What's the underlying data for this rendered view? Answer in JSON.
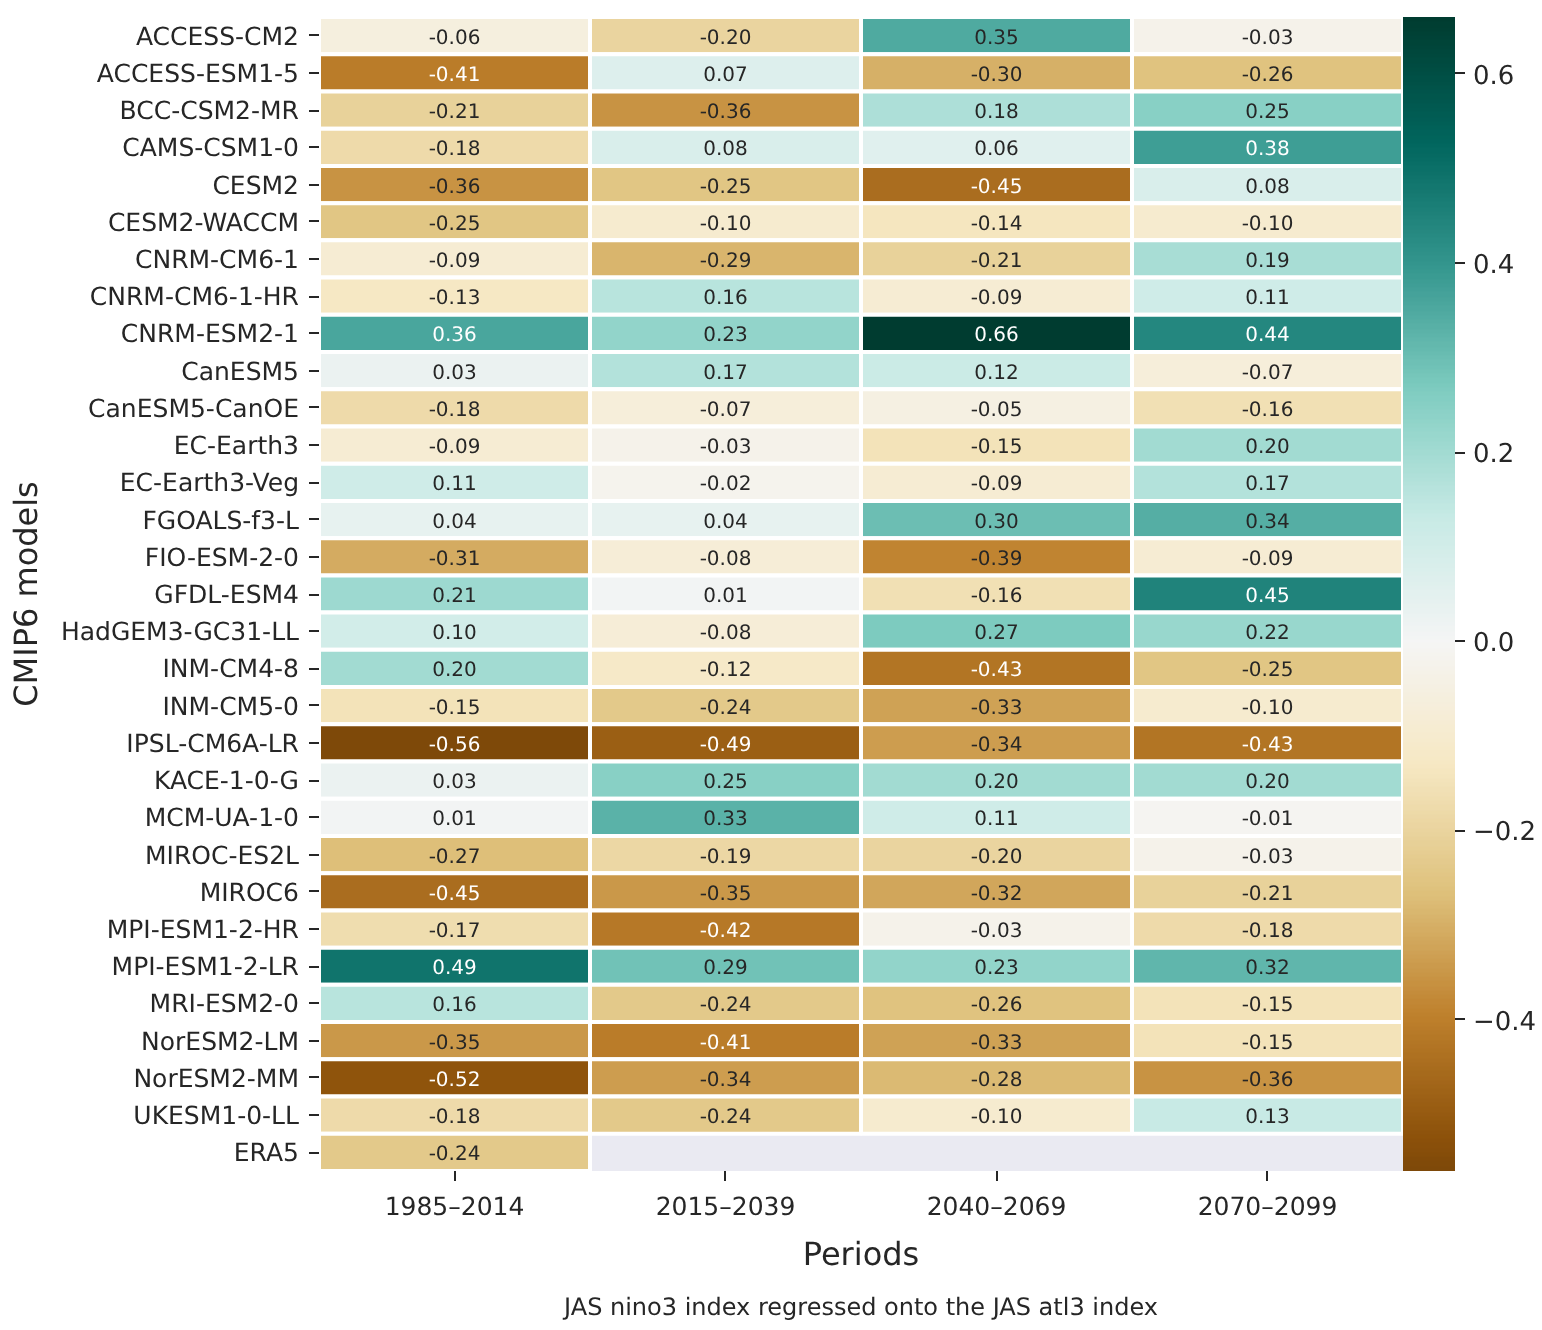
{
  "chart_data": {
    "type": "heatmap",
    "xlabel": "Periods",
    "ylabel": "CMIP6 models",
    "annotations": [
      "JAS nino3 index regressed onto the JAS atl3 index"
    ],
    "categories": [
      "1985–2014",
      "2015–2039",
      "2040–2069",
      "2070–2099"
    ],
    "y_categories": [
      "ACCESS-CM2",
      "ACCESS-ESM1-5",
      "BCC-CSM2-MR",
      "CAMS-CSM1-0",
      "CESM2",
      "CESM2-WACCM",
      "CNRM-CM6-1",
      "CNRM-CM6-1-HR",
      "CNRM-ESM2-1",
      "CanESM5",
      "CanESM5-CanOE",
      "EC-Earth3",
      "EC-Earth3-Veg",
      "FGOALS-f3-L",
      "FIO-ESM-2-0",
      "GFDL-ESM4",
      "HadGEM3-GC31-LL",
      "INM-CM4-8",
      "INM-CM5-0",
      "IPSL-CM6A-LR",
      "KACE-1-0-G",
      "MCM-UA-1-0",
      "MIROC-ES2L",
      "MIROC6",
      "MPI-ESM1-2-HR",
      "MPI-ESM1-2-LR",
      "MRI-ESM2-0",
      "NorESM2-LM",
      "NorESM2-MM",
      "UKESM1-0-LL",
      "ERA5"
    ],
    "cells": [
      [
        -0.06,
        -0.2,
        0.35,
        -0.03
      ],
      [
        -0.41,
        0.07,
        -0.3,
        -0.26
      ],
      [
        -0.21,
        -0.36,
        0.18,
        0.25
      ],
      [
        -0.18,
        0.08,
        0.06,
        0.38
      ],
      [
        -0.36,
        -0.25,
        -0.45,
        0.08
      ],
      [
        -0.25,
        -0.1,
        -0.14,
        -0.1
      ],
      [
        -0.09,
        -0.29,
        -0.21,
        0.19
      ],
      [
        -0.13,
        0.16,
        -0.09,
        0.11
      ],
      [
        0.36,
        0.23,
        0.66,
        0.44
      ],
      [
        0.03,
        0.17,
        0.12,
        -0.07
      ],
      [
        -0.18,
        -0.07,
        -0.05,
        -0.16
      ],
      [
        -0.09,
        -0.03,
        -0.15,
        0.2
      ],
      [
        0.11,
        -0.02,
        -0.09,
        0.17
      ],
      [
        0.04,
        0.04,
        0.3,
        0.34
      ],
      [
        -0.31,
        -0.08,
        -0.39,
        -0.09
      ],
      [
        0.21,
        0.01,
        -0.16,
        0.45
      ],
      [
        0.1,
        -0.08,
        0.27,
        0.22
      ],
      [
        0.2,
        -0.12,
        -0.43,
        -0.25
      ],
      [
        -0.15,
        -0.24,
        -0.33,
        -0.1
      ],
      [
        -0.56,
        -0.49,
        -0.34,
        -0.43
      ],
      [
        0.03,
        0.25,
        0.2,
        0.2
      ],
      [
        0.01,
        0.33,
        0.11,
        -0.01
      ],
      [
        -0.27,
        -0.19,
        -0.2,
        -0.03
      ],
      [
        -0.45,
        -0.35,
        -0.32,
        -0.21
      ],
      [
        -0.17,
        -0.42,
        -0.03,
        -0.18
      ],
      [
        0.49,
        0.29,
        0.23,
        0.32
      ],
      [
        0.16,
        -0.24,
        -0.26,
        -0.15
      ],
      [
        -0.35,
        -0.41,
        -0.33,
        -0.15
      ],
      [
        -0.52,
        -0.34,
        -0.28,
        -0.36
      ],
      [
        -0.18,
        -0.24,
        -0.1,
        0.13
      ],
      [
        -0.24,
        null,
        null,
        null
      ]
    ],
    "cell_labels": [
      [
        "-0.06",
        "-0.20",
        "0.35",
        "-0.03"
      ],
      [
        "-0.41",
        "0.07",
        "-0.30",
        "-0.26"
      ],
      [
        "-0.21",
        "-0.36",
        "0.18",
        "0.25"
      ],
      [
        "-0.18",
        "0.08",
        "0.06",
        "0.38"
      ],
      [
        "-0.36",
        "-0.25",
        "-0.45",
        "0.08"
      ],
      [
        "-0.25",
        "-0.10",
        "-0.14",
        "-0.10"
      ],
      [
        "-0.09",
        "-0.29",
        "-0.21",
        "0.19"
      ],
      [
        "-0.13",
        "0.16",
        "-0.09",
        "0.11"
      ],
      [
        "0.36",
        "0.23",
        "0.66",
        "0.44"
      ],
      [
        "0.03",
        "0.17",
        "0.12",
        "-0.07"
      ],
      [
        "-0.18",
        "-0.07",
        "-0.05",
        "-0.16"
      ],
      [
        "-0.09",
        "-0.03",
        "-0.15",
        "0.20"
      ],
      [
        "0.11",
        "-0.02",
        "-0.09",
        "0.17"
      ],
      [
        "0.04",
        "0.04",
        "0.30",
        "0.34"
      ],
      [
        "-0.31",
        "-0.08",
        "-0.39",
        "-0.09"
      ],
      [
        "0.21",
        "0.01",
        "-0.16",
        "0.45"
      ],
      [
        "0.10",
        "-0.08",
        "0.27",
        "0.22"
      ],
      [
        "0.20",
        "-0.12",
        "-0.43",
        "-0.25"
      ],
      [
        "-0.15",
        "-0.24",
        "-0.33",
        "-0.10"
      ],
      [
        "-0.56",
        "-0.49",
        "-0.34",
        "-0.43"
      ],
      [
        "0.03",
        "0.25",
        "0.20",
        "0.20"
      ],
      [
        "0.01",
        "0.33",
        "0.11",
        "-0.01"
      ],
      [
        "-0.27",
        "-0.19",
        "-0.20",
        "-0.03"
      ],
      [
        "-0.45",
        "-0.35",
        "-0.32",
        "-0.21"
      ],
      [
        "-0.17",
        "-0.42",
        "-0.03",
        "-0.18"
      ],
      [
        "0.49",
        "0.29",
        "0.23",
        "0.32"
      ],
      [
        "0.16",
        "-0.24",
        "-0.26",
        "-0.15"
      ],
      [
        "-0.35",
        "-0.41",
        "-0.33",
        "-0.15"
      ],
      [
        "-0.52",
        "-0.34",
        "-0.28",
        "-0.36"
      ],
      [
        "-0.18",
        "-0.24",
        "-0.10",
        "0.13"
      ],
      [
        "-0.24",
        null,
        null,
        null
      ]
    ],
    "clim": [
      -0.56,
      0.66
    ],
    "cticks": [
      {
        "value": -0.4,
        "label": "−0.4"
      },
      {
        "value": -0.2,
        "label": "−0.2"
      },
      {
        "value": 0,
        "label": "0.0"
      },
      {
        "value": 0.2,
        "label": "0.2"
      },
      {
        "value": 0.4,
        "label": "0.4"
      },
      {
        "value": 0.6,
        "label": "0.6"
      }
    ]
  }
}
